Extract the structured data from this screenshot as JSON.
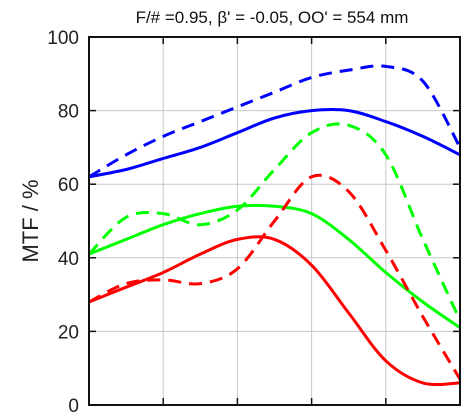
{
  "chart_data": {
    "type": "line",
    "title": "F/# =0.95, β' = -0.05, OO' = 554 mm",
    "ylabel": "MTF / %",
    "xlabel": "",
    "ylim": [
      0,
      100
    ],
    "yticks": [
      0,
      20,
      40,
      60,
      80,
      100
    ],
    "xlim": [
      0,
      10
    ],
    "grid": true,
    "series": [
      {
        "color": "#0000ff",
        "dash": "solid",
        "x": [
          0,
          1,
          2,
          3,
          4,
          5,
          6,
          7,
          8,
          9,
          10
        ],
        "y": [
          62,
          64,
          67,
          70,
          74,
          78,
          80,
          80,
          77,
          73,
          68
        ]
      },
      {
        "color": "#0000ff",
        "dash": "dashed",
        "x": [
          0,
          1,
          2,
          3,
          4,
          5,
          6,
          7,
          8,
          9,
          10
        ],
        "y": [
          62,
          68,
          73,
          77,
          81,
          85,
          89,
          91,
          92,
          88,
          70
        ]
      },
      {
        "color": "#00ff00",
        "dash": "solid",
        "x": [
          0,
          1,
          2,
          3,
          4,
          5,
          6,
          7,
          8,
          9,
          10
        ],
        "y": [
          41,
          45,
          49,
          52,
          54,
          54,
          52,
          45,
          36,
          28,
          21
        ]
      },
      {
        "color": "#00ff00",
        "dash": "dashed",
        "x": [
          0,
          1,
          2,
          3,
          4,
          5,
          6,
          7,
          8,
          9,
          10
        ],
        "y": [
          41,
          51,
          52,
          49,
          53,
          64,
          74,
          76,
          68,
          45,
          23
        ]
      },
      {
        "color": "#ff0000",
        "dash": "solid",
        "x": [
          0,
          1,
          2,
          3,
          4,
          5,
          6,
          7,
          8,
          9,
          10
        ],
        "y": [
          28,
          32,
          36,
          41,
          45,
          45,
          38,
          25,
          12,
          6,
          6
        ]
      },
      {
        "color": "#ff0000",
        "dash": "dashed",
        "x": [
          0,
          1,
          2,
          3,
          4,
          5,
          6,
          7,
          8,
          9,
          10
        ],
        "y": [
          28,
          33,
          34,
          33,
          37,
          50,
          62,
          58,
          42,
          24,
          7
        ]
      }
    ]
  }
}
